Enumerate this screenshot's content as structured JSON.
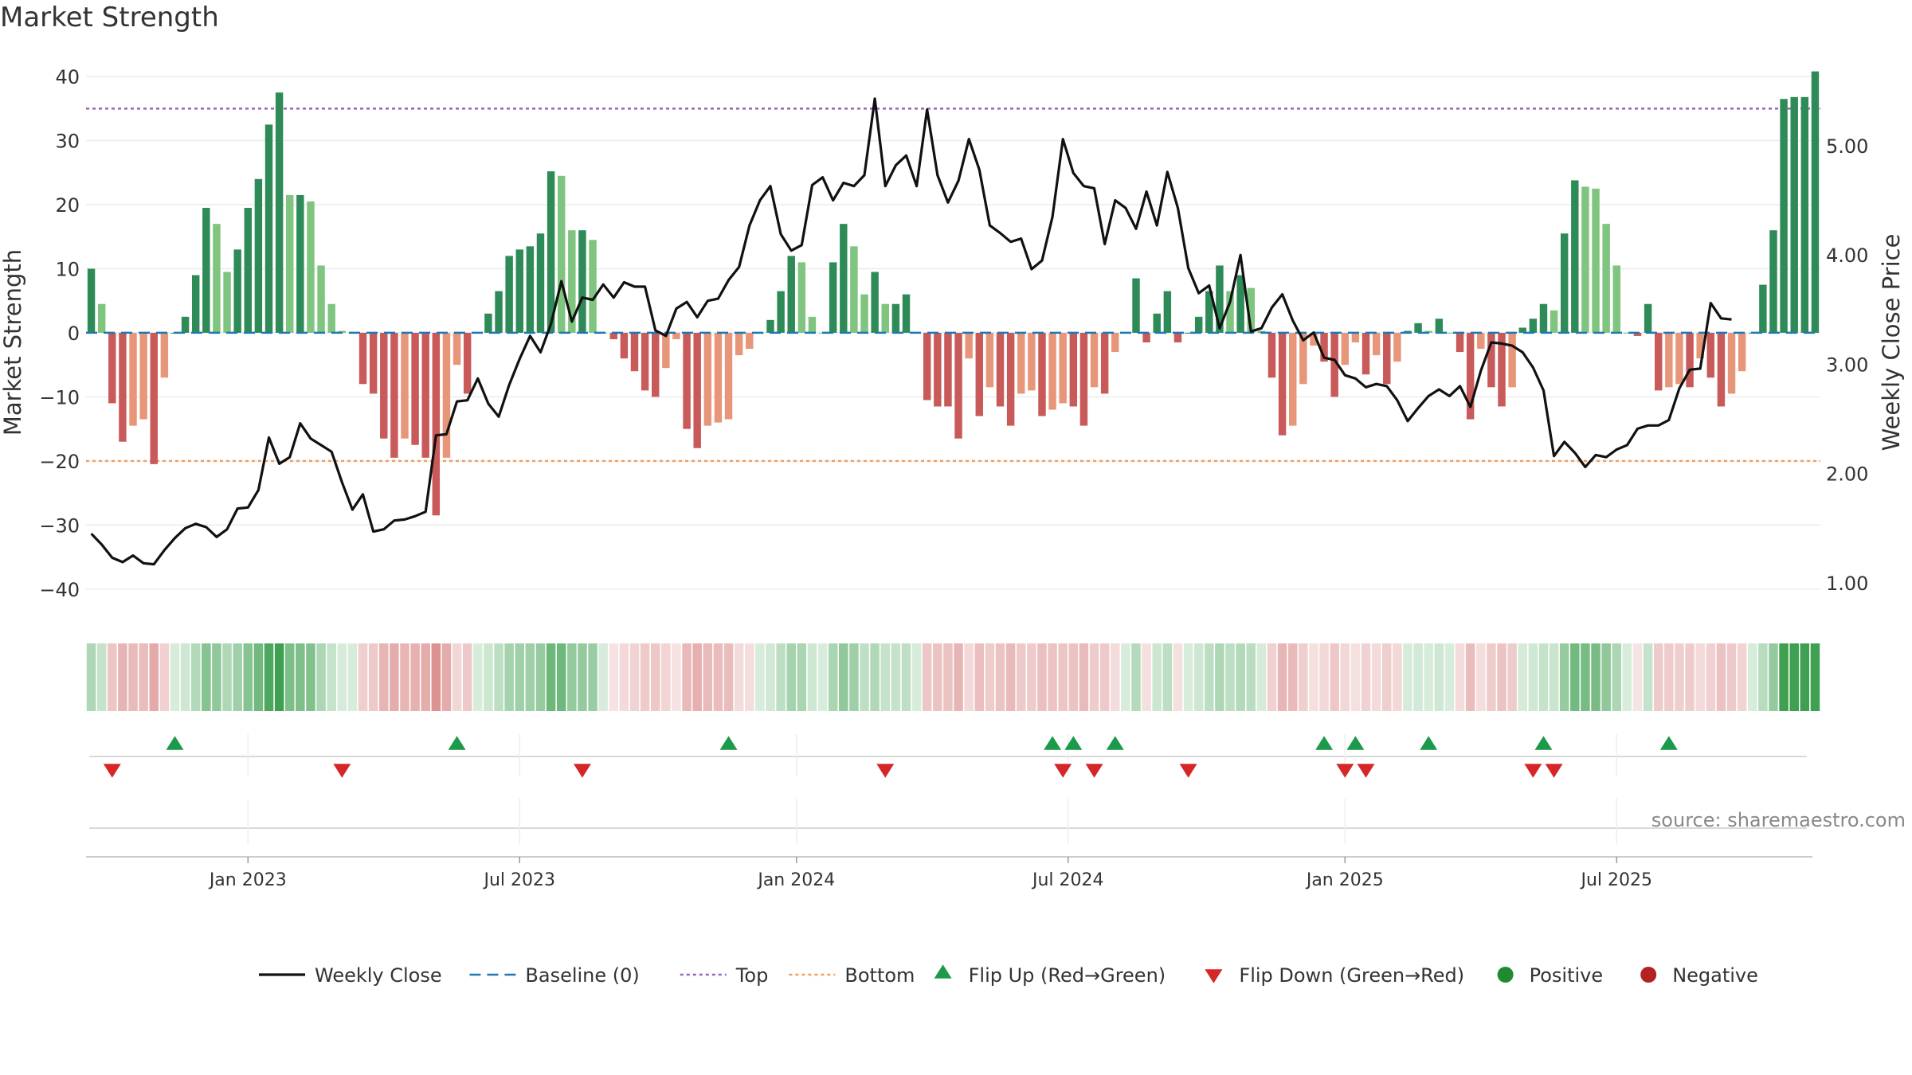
{
  "title": "Market Strength",
  "source": "source: sharemaestro.com",
  "colors": {
    "strong_green": "#2e8b57",
    "light_green": "#7fc47f",
    "strong_red": "#c85a5a",
    "light_red": "#e8967a",
    "close_line": "#111111",
    "baseline": "#1f77b4",
    "top": "#9467bd",
    "bottom": "#f0a060",
    "flip_up": "#1a9a4a",
    "flip_down": "#d62728",
    "positive": "#1e8c2e",
    "negative": "#b22222"
  },
  "chart_data": {
    "type": "bar+line",
    "ylabel_left": "Market Strength",
    "ylabel_right": "Weekly Close Price",
    "ylim_left": [
      -45,
      42
    ],
    "ylim_right": [
      0.65,
      5.75
    ],
    "left_ticks": [
      "40",
      "30",
      "20",
      "10",
      "0",
      "−10",
      "−20",
      "−30",
      "−40"
    ],
    "left_tick_values": [
      40,
      30,
      20,
      10,
      0,
      -10,
      -20,
      -30,
      -40
    ],
    "right_ticks": [
      "5.00",
      "4.00",
      "3.00",
      "2.00",
      "1.00"
    ],
    "right_tick_values": [
      5,
      4,
      3,
      2,
      1
    ],
    "x_tick_labels": [
      "Jan 2023",
      "Jul 2023",
      "Jan 2024",
      "Jul 2024",
      "Jan 2025",
      "Jul 2025"
    ],
    "x_tick_index": [
      15,
      41,
      67.5,
      93.5,
      120,
      146
    ],
    "top_level": 35,
    "bottom_level": -20,
    "strength": [
      10,
      4.5,
      -11,
      -17,
      -14.5,
      -13.5,
      -20.5,
      -7,
      0,
      2.5,
      9,
      19.5,
      17,
      9.5,
      13,
      19.5,
      24,
      32.5,
      37.5,
      21.5,
      21.5,
      20.5,
      10.5,
      4.5,
      0.3,
      0,
      -8,
      -9.5,
      -16.5,
      -19.5,
      -16.5,
      -17.5,
      -19.5,
      -28.5,
      -19.5,
      -5,
      -9.5,
      0,
      3,
      6.5,
      12,
      13,
      13.5,
      15.5,
      25.2,
      24.5,
      16,
      16,
      14.5,
      0,
      -1,
      -4,
      -6,
      -9,
      -10,
      -5.5,
      -1,
      -15,
      -18,
      -14.5,
      -14,
      -13.5,
      -3.5,
      -2.5,
      0,
      2,
      6.5,
      12,
      11,
      2.5,
      0,
      11,
      17,
      13.5,
      6,
      9.5,
      4.5,
      4.5,
      6,
      0,
      -10.5,
      -11.5,
      -11.5,
      -16.5,
      -4,
      -13,
      -8.5,
      -11.5,
      -14.5,
      -9.5,
      -9,
      -13,
      -12,
      -11,
      -11.5,
      -14.5,
      -8.5,
      -9.5,
      -3,
      0,
      8.5,
      -1.5,
      3,
      6.5,
      -1.5,
      0,
      2.5,
      6.5,
      10.5,
      6.5,
      9,
      7,
      0.3,
      -7,
      -16,
      -14.5,
      -8,
      -2,
      -4.5,
      -10,
      -5,
      -1.5,
      -6.5,
      -3.5,
      -8,
      -4.5,
      0.3,
      1.5,
      0.3,
      2.2,
      0,
      -3,
      -13.5,
      -2.5,
      -8.5,
      -11.5,
      -8.5,
      0.8,
      2.2,
      4.5,
      3.5,
      15.5,
      23.8,
      22.8,
      22.5,
      17,
      10.5,
      0,
      -0.5,
      4.5,
      -9,
      -8.5,
      -8,
      -8.5,
      -4,
      -7,
      -11.5,
      -9.5,
      -6,
      0,
      7.5,
      16,
      36.5,
      36.8,
      36.8,
      40.8
    ],
    "close": [
      1.45,
      1.35,
      1.23,
      1.19,
      1.25,
      1.18,
      1.17,
      1.3,
      1.41,
      1.5,
      1.54,
      1.51,
      1.42,
      1.49,
      1.68,
      1.69,
      1.85,
      2.33,
      2.09,
      2.15,
      2.46,
      2.32,
      2.26,
      2.2,
      1.92,
      1.67,
      1.81,
      1.47,
      1.49,
      1.57,
      1.58,
      1.61,
      1.65,
      2.35,
      2.36,
      2.66,
      2.67,
      2.87,
      2.64,
      2.52,
      2.81,
      3.05,
      3.26,
      3.11,
      3.37,
      3.76,
      3.39,
      3.61,
      3.59,
      3.73,
      3.61,
      3.75,
      3.71,
      3.71,
      3.31,
      3.26,
      3.51,
      3.57,
      3.43,
      3.58,
      3.6,
      3.77,
      3.89,
      4.27,
      4.5,
      4.63,
      4.19,
      4.04,
      4.09,
      4.64,
      4.71,
      4.5,
      4.66,
      4.63,
      4.73,
      5.43,
      4.63,
      4.82,
      4.91,
      4.63,
      5.33,
      4.73,
      4.48,
      4.68,
      5.06,
      4.78,
      4.27,
      4.2,
      4.12,
      4.15,
      3.87,
      3.95,
      4.35,
      5.06,
      4.75,
      4.63,
      4.61,
      4.1,
      4.5,
      4.43,
      4.24,
      4.58,
      4.27,
      4.76,
      4.43,
      3.88,
      3.65,
      3.72,
      3.33,
      3.57,
      4.0,
      3.3,
      3.33,
      3.52,
      3.64,
      3.4,
      3.22,
      3.29,
      3.06,
      3.04,
      2.9,
      2.87,
      2.79,
      2.82,
      2.8,
      2.67,
      2.48,
      2.6,
      2.71,
      2.77,
      2.71,
      2.8,
      2.61,
      2.94,
      3.2,
      3.19,
      3.17,
      3.11,
      2.97,
      2.76,
      2.16,
      2.29,
      2.19,
      2.06,
      2.17,
      2.15,
      2.22,
      2.26,
      2.41,
      2.44,
      2.44,
      2.49,
      2.78,
      2.95,
      2.96,
      3.56,
      3.42,
      3.41
    ],
    "flip_up_index": [
      8,
      35,
      61,
      92,
      94,
      98,
      118,
      121,
      128,
      139,
      151
    ],
    "flip_down_index": [
      2,
      24,
      47,
      76,
      93,
      96,
      105,
      120,
      122,
      138,
      140
    ],
    "legend": [
      "Weekly Close",
      "Baseline (0)",
      "Top",
      "Bottom",
      "Flip Up (Red→Green)",
      "Flip Down (Green→Red)",
      "Positive",
      "Negative"
    ]
  }
}
